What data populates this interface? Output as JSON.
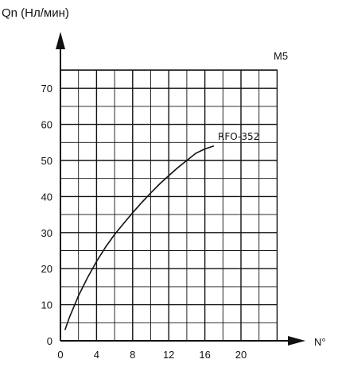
{
  "chart_data": {
    "type": "line",
    "title": "",
    "ylabel": "Qn (Нл/мин)",
    "xlabel": "N°",
    "corner_label": "M5",
    "xlim": [
      0,
      24
    ],
    "ylim": [
      0,
      75
    ],
    "xticks": [
      "0",
      "4",
      "8",
      "12",
      "16",
      "20"
    ],
    "yticks": [
      "0",
      "10",
      "20",
      "30",
      "40",
      "50",
      "60",
      "70"
    ],
    "grid": true,
    "series": [
      {
        "name": "RFO-352",
        "x": [
          0.5,
          1,
          2,
          3,
          4,
          5,
          6,
          7,
          8,
          9,
          10,
          11,
          12,
          13,
          14,
          15,
          16,
          17
        ],
        "y": [
          3,
          6.5,
          12.5,
          17.5,
          22,
          26,
          29.5,
          32.5,
          35.5,
          38.3,
          41,
          43.5,
          45.8,
          48,
          50,
          52,
          53.2,
          54
        ]
      }
    ]
  }
}
